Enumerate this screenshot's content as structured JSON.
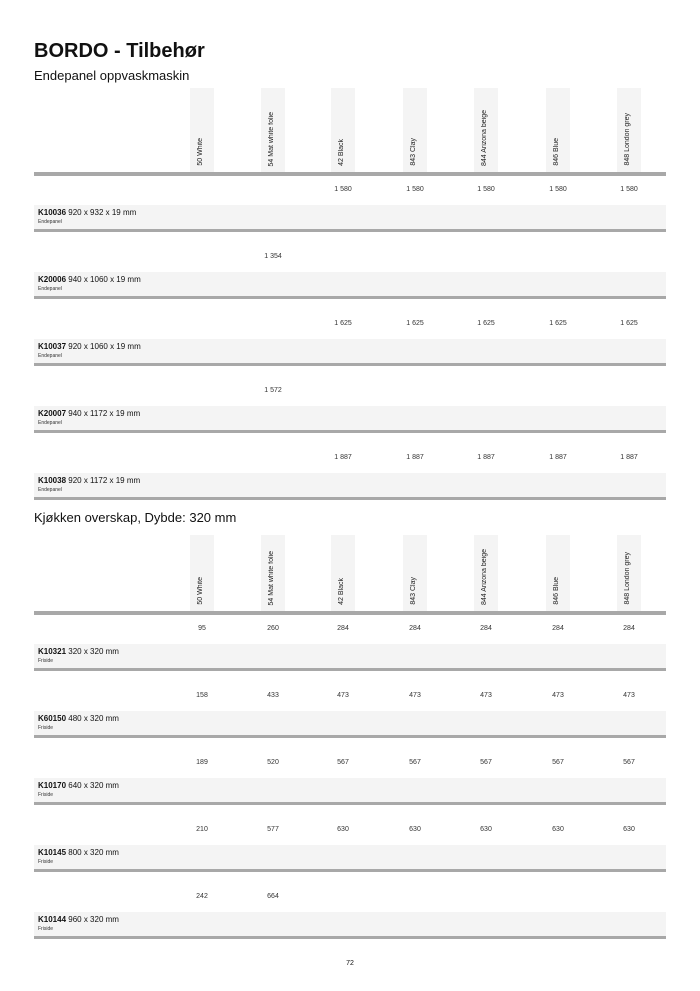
{
  "title": "BORDO - Tilbehør",
  "page_number": "72",
  "sections": [
    {
      "heading": "Endepanel oppvaskmaskin",
      "columns": [
        "50 White",
        "54 Mat white folie",
        "42 Black",
        "843 Clay",
        "844 Arizona beige",
        "846 Blue",
        "848 London grey"
      ],
      "rows": [
        {
          "code": "K10036",
          "dims": "920 x 932 x 19 mm",
          "desc": "Endepanel",
          "prices": [
            "",
            "",
            "1 580",
            "1 580",
            "1 580",
            "1 580",
            "1 580"
          ]
        },
        {
          "code": "K20006",
          "dims": "940 x 1060 x 19 mm",
          "desc": "Endepanel",
          "prices": [
            "",
            "1 354",
            "",
            "",
            "",
            "",
            ""
          ]
        },
        {
          "code": "K10037",
          "dims": "920 x 1060 x 19 mm",
          "desc": "Endepanel",
          "prices": [
            "",
            "",
            "1 625",
            "1 625",
            "1 625",
            "1 625",
            "1 625"
          ]
        },
        {
          "code": "K20007",
          "dims": "940 x 1172 x 19 mm",
          "desc": "Endepanel",
          "prices": [
            "",
            "1 572",
            "",
            "",
            "",
            "",
            ""
          ]
        },
        {
          "code": "K10038",
          "dims": "920 x 1172 x 19 mm",
          "desc": "Endepanel",
          "prices": [
            "",
            "",
            "1 887",
            "1 887",
            "1 887",
            "1 887",
            "1 887"
          ]
        }
      ]
    },
    {
      "heading": "Kjøkken overskap, Dybde: 320 mm",
      "columns": [
        "50 White",
        "54 Mat white folie",
        "42 Black",
        "843 Clay",
        "844 Arizona beige",
        "846 Blue",
        "848 London grey"
      ],
      "rows": [
        {
          "code": "K10321",
          "dims": "320 x 320 mm",
          "desc": "Friside",
          "prices": [
            "95",
            "260",
            "284",
            "284",
            "284",
            "284",
            "284"
          ]
        },
        {
          "code": "K60150",
          "dims": "480 x 320 mm",
          "desc": "Friside",
          "prices": [
            "158",
            "433",
            "473",
            "473",
            "473",
            "473",
            "473"
          ]
        },
        {
          "code": "K10170",
          "dims": "640 x 320 mm",
          "desc": "Friside",
          "prices": [
            "189",
            "520",
            "567",
            "567",
            "567",
            "567",
            "567"
          ]
        },
        {
          "code": "K10145",
          "dims": "800 x 320 mm",
          "desc": "Friside",
          "prices": [
            "210",
            "577",
            "630",
            "630",
            "630",
            "630",
            "630"
          ]
        },
        {
          "code": "K10144",
          "dims": "960 x 320 mm",
          "desc": "Friside",
          "prices": [
            "242",
            "664",
            "",
            "",
            "",
            "",
            ""
          ]
        }
      ]
    }
  ]
}
